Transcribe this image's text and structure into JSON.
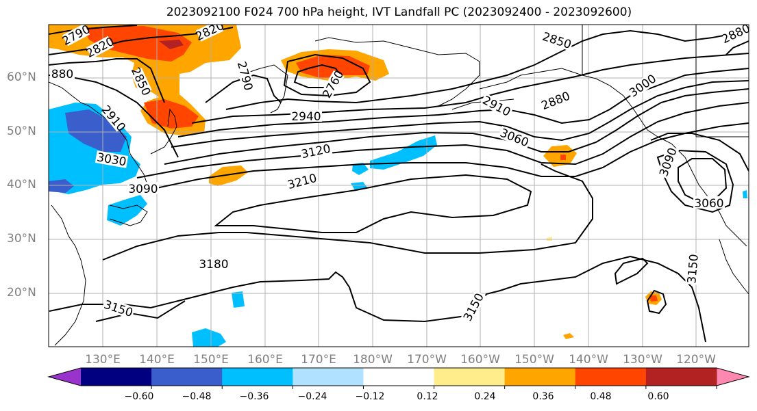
{
  "title": "2023092100 F024 700 hPa height, IVT Landfall PC (2023092400 - 2023092600)",
  "map": {
    "lat_ticks": [
      "60°N",
      "50°N",
      "40°N",
      "30°N",
      "20°N"
    ],
    "lon_ticks": [
      "130°E",
      "140°E",
      "150°E",
      "160°E",
      "170°E",
      "180°W",
      "170°W",
      "160°W",
      "150°W",
      "140°W",
      "130°W",
      "120°W"
    ],
    "contour_labels": [
      "2790",
      "2820",
      "2820",
      "880",
      "2850",
      "2790",
      "2760",
      "2850",
      "2880",
      "2910",
      "2910",
      "2940",
      "3000",
      "3030",
      "3060",
      "3090",
      "3120",
      "3210",
      "3090",
      "3060",
      "3180",
      "3150",
      "3150",
      "3150",
      "2880"
    ],
    "contour_color": "#000000",
    "grid_color": "#b0b0b0",
    "land_outline_color": "#000000"
  },
  "colorbar": {
    "tick_labels": [
      "−0.60",
      "−0.48",
      "−0.36",
      "−0.24",
      "−0.12",
      "0.12",
      "0.24",
      "0.36",
      "0.48",
      "0.60"
    ],
    "colors": [
      "#9933cc",
      "#000080",
      "#3a5fcd",
      "#00bfff",
      "#b0e2ff",
      "#ffffff",
      "#ffec8b",
      "#ffa500",
      "#ff4500",
      "#b22222",
      "#ff88b0"
    ]
  }
}
